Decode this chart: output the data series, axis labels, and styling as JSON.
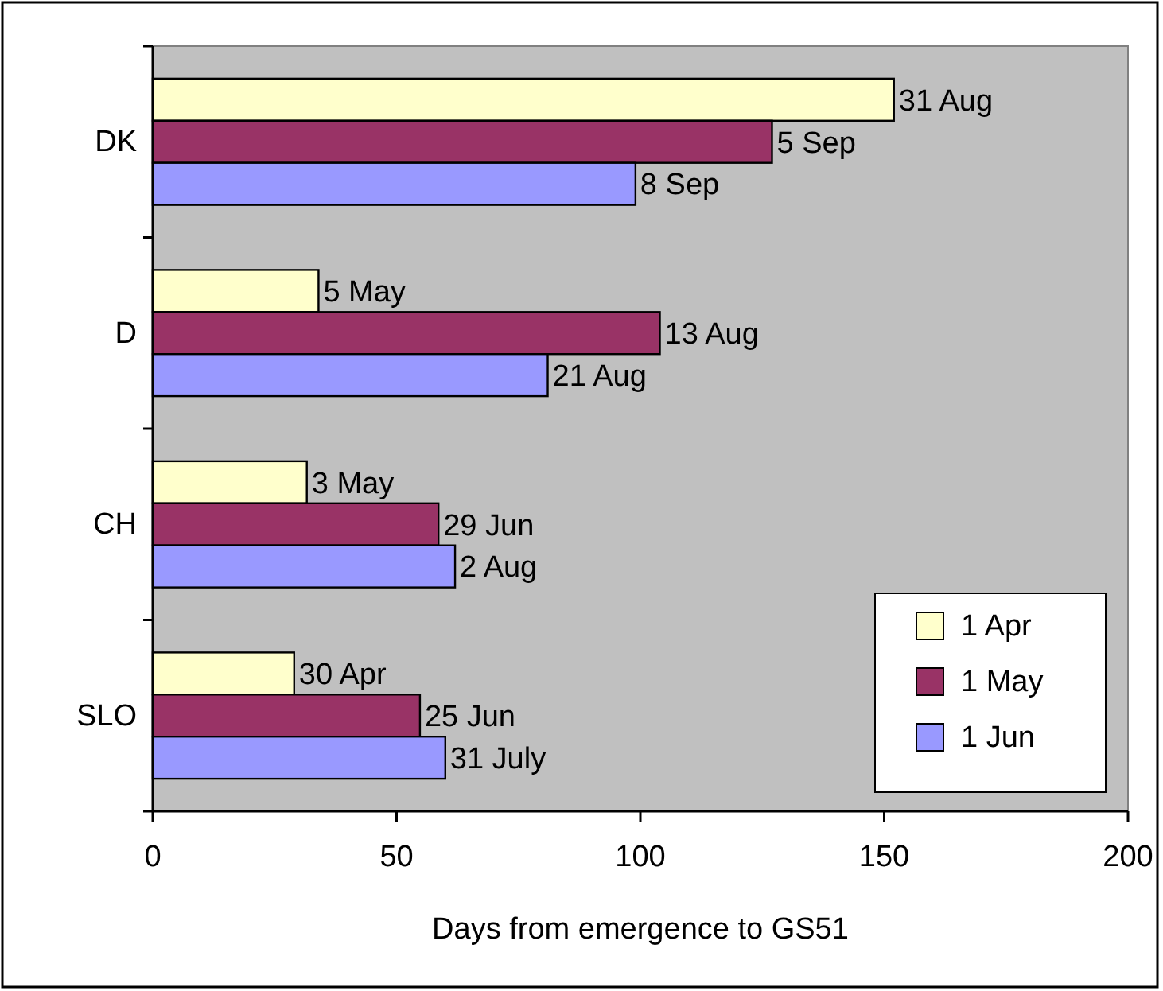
{
  "chart_data": {
    "type": "bar",
    "orientation": "horizontal",
    "xlabel": "Days from emergence to GS51",
    "categories": [
      "DK",
      "D",
      "CH",
      "SLO"
    ],
    "series": [
      {
        "name": "1 Apr",
        "color": "#ffffcc",
        "values": [
          152,
          34,
          31.6,
          29
        ],
        "value_labels": [
          "31 Aug",
          "5 May",
          "3 May",
          "30 Apr"
        ]
      },
      {
        "name": "1 May",
        "color": "#993366",
        "values": [
          127,
          104,
          58.6,
          54.8
        ],
        "value_labels": [
          "5 Sep",
          "13 Aug",
          "29 Jun",
          "25 Jun"
        ]
      },
      {
        "name": "1 Jun",
        "color": "#9999ff",
        "values": [
          99,
          81,
          62,
          60
        ],
        "value_labels": [
          "8 Sep",
          "21 Aug",
          "2 Aug",
          "31 July"
        ]
      }
    ],
    "xlim": [
      0,
      200
    ],
    "xticks": [
      0,
      50,
      100,
      150,
      200
    ],
    "grid": false,
    "legend": "bottom right"
  }
}
